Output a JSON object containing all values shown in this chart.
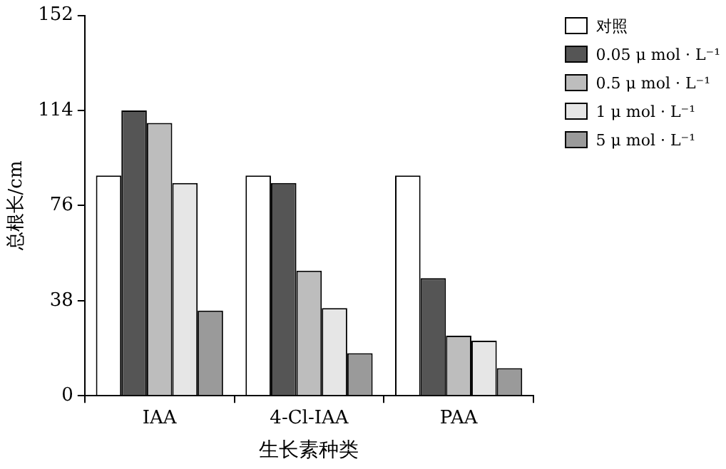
{
  "chart_data": {
    "type": "bar",
    "xlabel": "生长素种类",
    "ylabel": "总根长/cm",
    "categories": [
      "IAA",
      "4-Cl-IAA",
      "PAA"
    ],
    "series": [
      {
        "name": "对照",
        "color": "#ffffff",
        "values": [
          88,
          88,
          88
        ]
      },
      {
        "name": "0.05 μ mol · L⁻¹",
        "color": "#555555",
        "values": [
          114,
          85,
          47
        ]
      },
      {
        "name": "0.5 μ mol · L⁻¹",
        "color": "#bdbdbd",
        "values": [
          109,
          50,
          24
        ]
      },
      {
        "name": "1 μ mol · L⁻¹",
        "color": "#e6e6e6",
        "values": [
          85,
          35,
          22
        ]
      },
      {
        "name": "5 μ mol · L⁻¹",
        "color": "#9a9a9a",
        "values": [
          34,
          17,
          11
        ]
      }
    ],
    "ylim": [
      0,
      152
    ],
    "yticks": [
      0,
      38,
      76,
      114,
      152
    ],
    "grid": false,
    "legend": "top right"
  }
}
